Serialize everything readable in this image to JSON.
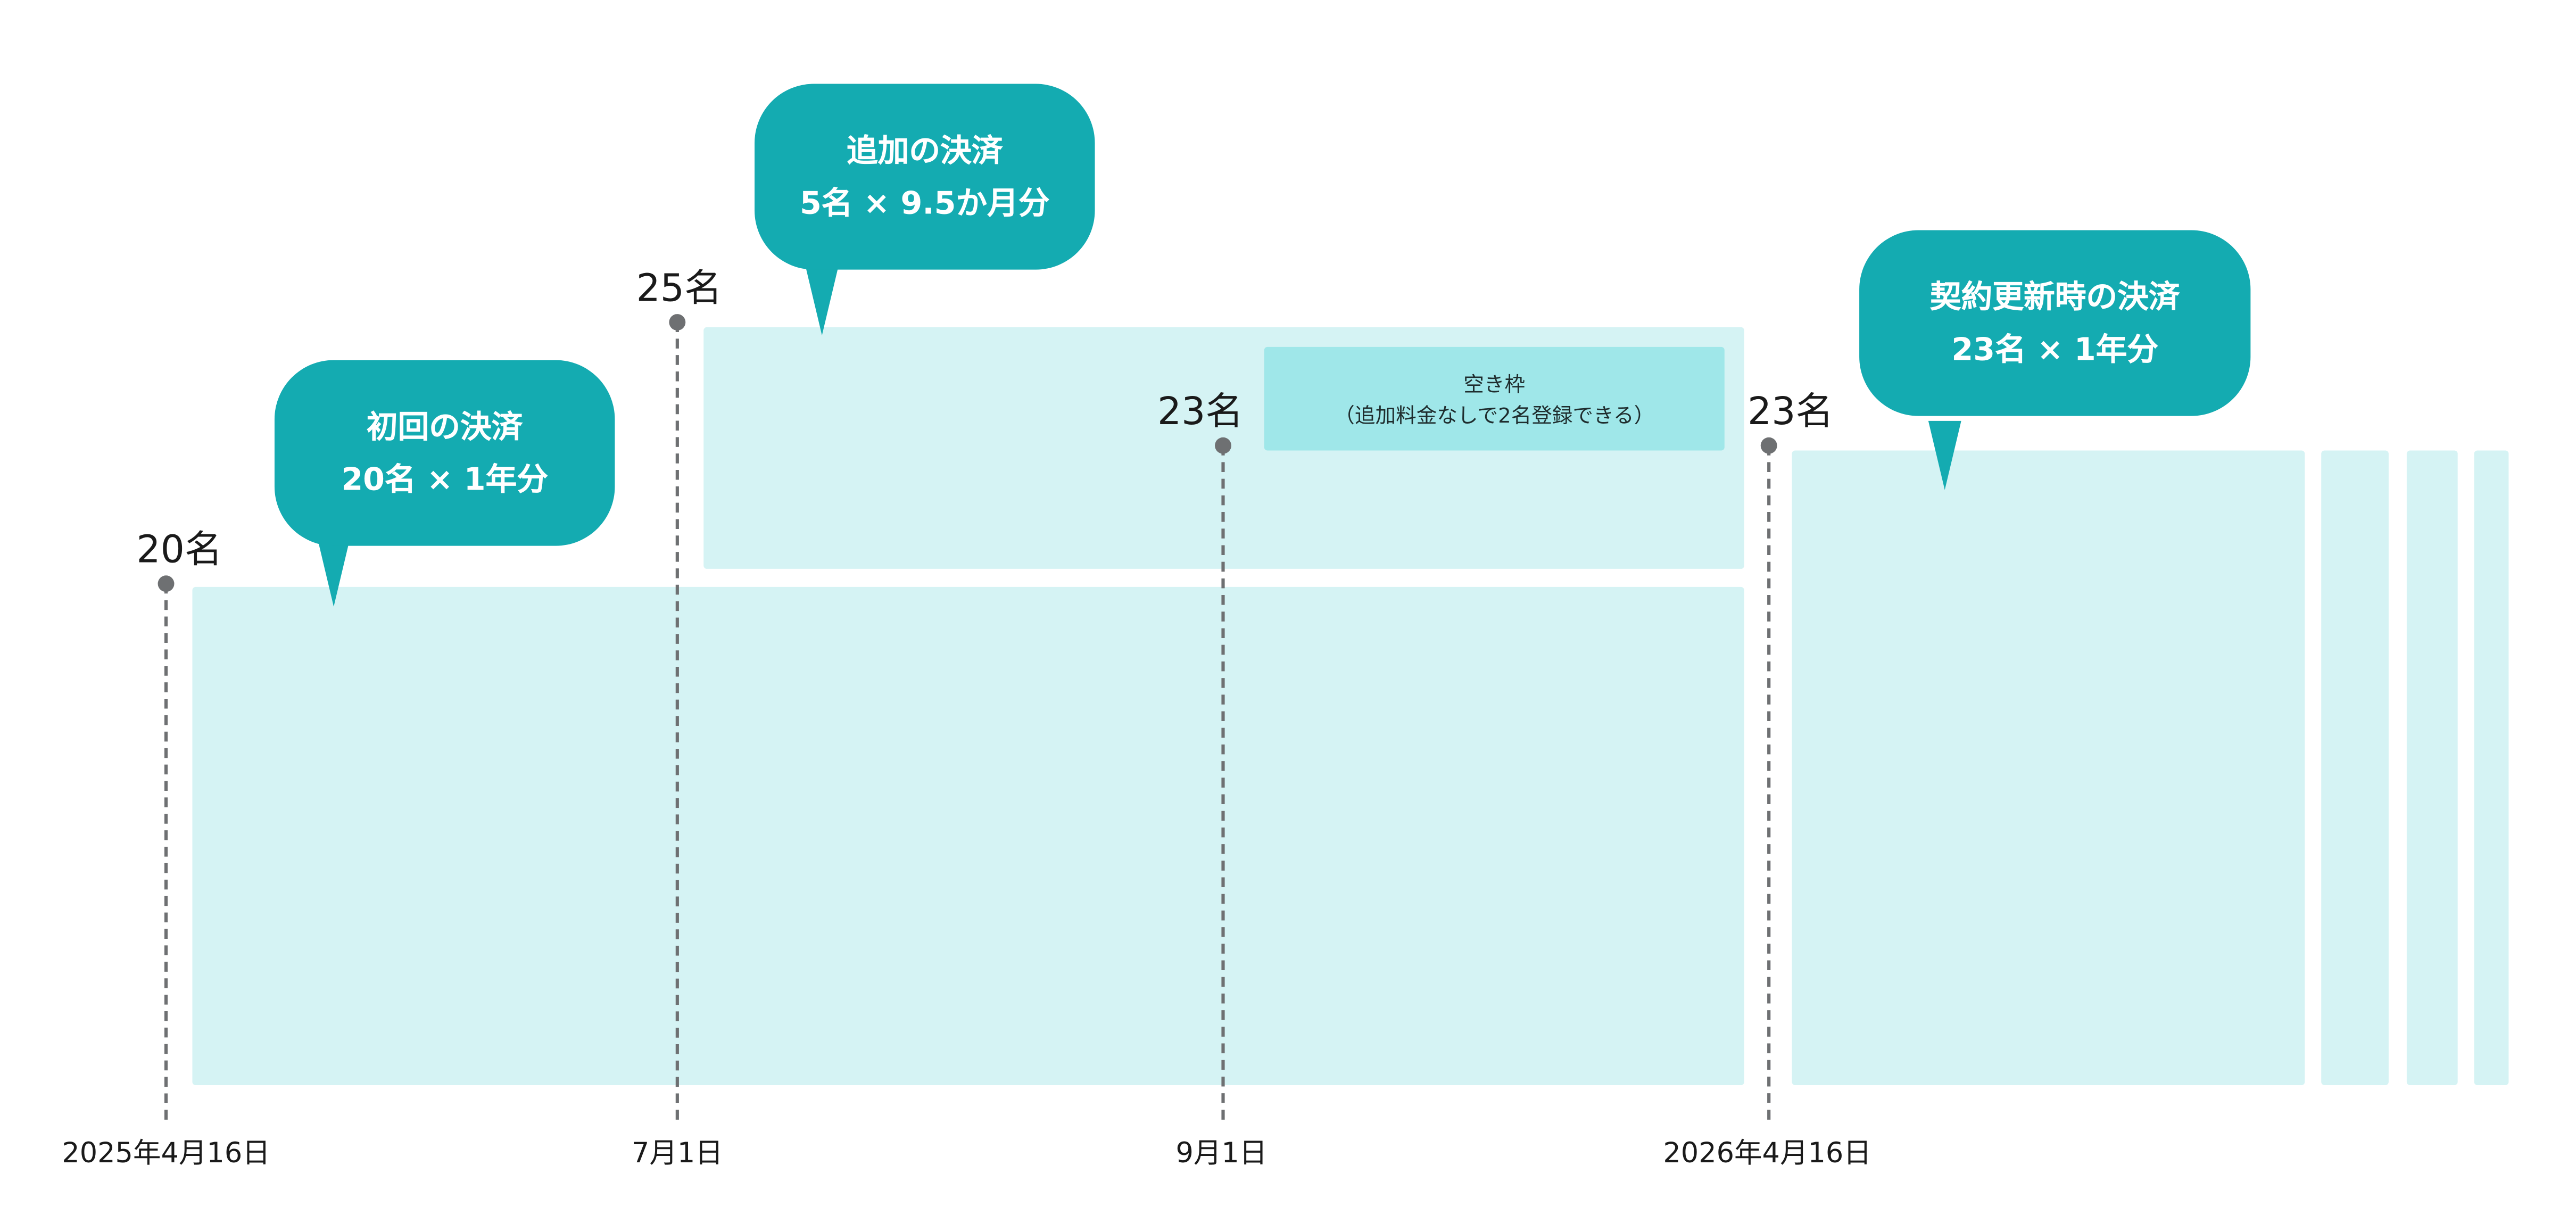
{
  "colors": {
    "bubble": "#14abb1",
    "block": "#d5f3f4",
    "slot": "#9fe7e9",
    "timeline": "#6e7072"
  },
  "bubbles": {
    "initial": {
      "line1": "初回の決済",
      "line2": "20名 × 1年分"
    },
    "additional": {
      "line1": "追加の決済",
      "line2": "5名 × 9.5か月分"
    },
    "renewal": {
      "line1": "契約更新時の決済",
      "line2": "23名 × 1年分"
    }
  },
  "markers": [
    {
      "count": "20名",
      "date": "2025年4月16日"
    },
    {
      "count": "25名",
      "date": "7月1日"
    },
    {
      "count": "23名",
      "date": "9月1日"
    },
    {
      "count": "23名",
      "date": "2026年4月16日"
    }
  ],
  "empty_slot": {
    "line1": "空き枠",
    "line2": "（追加料金なしで2名登録できる）"
  }
}
